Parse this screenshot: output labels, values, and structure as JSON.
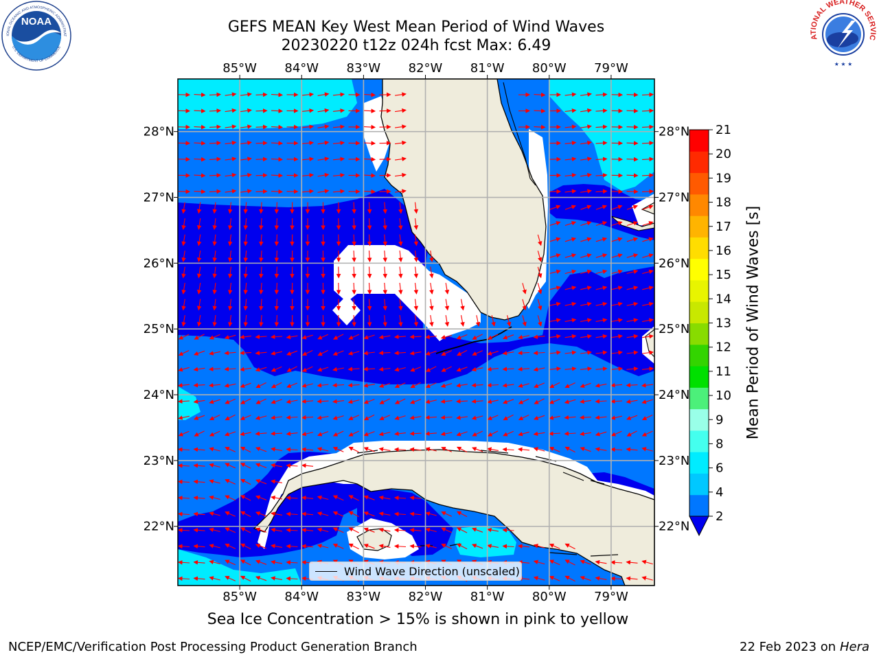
{
  "title_line1": "GEFS MEAN Key West Mean Period of Wind Waves",
  "title_line2": "20230220 t12z 024h fcst   Max: 6.49",
  "note": "Sea Ice Concentration > 15% is shown in pink to yellow",
  "footer_left": "NCEP/EMC/Verification Post Processing Product Generation Branch",
  "footer_date": "22 Feb 2023 on",
  "footer_machine": "Hera",
  "legend_label": "Wind Wave Direction (unscaled)",
  "colorbar": {
    "label": "Mean Period of Wind Waves [s]",
    "ticks": [
      "2",
      "4",
      "6",
      "8",
      "9",
      "10",
      "11",
      "12",
      "13",
      "14",
      "15",
      "16",
      "17",
      "18",
      "19",
      "20",
      "21"
    ],
    "colors": [
      "#0077ff",
      "#00c8ff",
      "#00ecff",
      "#44ffee",
      "#99ffe8",
      "#4cf07a",
      "#00e000",
      "#33d400",
      "#88dc00",
      "#c8e800",
      "#e8f400",
      "#ffff00",
      "#ffdd00",
      "#ffb400",
      "#ff8800",
      "#ff5a00",
      "#ff2a00",
      "#ff0000"
    ],
    "extend": "min"
  },
  "axes": {
    "lon_labels": [
      "85°W",
      "84°W",
      "83°W",
      "82°W",
      "81°W",
      "80°W",
      "79°W"
    ],
    "lat_labels": [
      "28°N",
      "27°N",
      "26°N",
      "25°N",
      "24°N",
      "23°N",
      "22°N"
    ],
    "lon_range": [
      -86.0,
      -78.3
    ],
    "lat_range": [
      21.1,
      28.8
    ]
  },
  "colors": {
    "land": "#efecdc",
    "arrow": "#ff0000",
    "grid": "#b0b0b0",
    "period_2_4": "#0077ff",
    "period_4_6": "#00c8ff",
    "period_6_8": "#00ecff",
    "below_min": "#0000ee",
    "no_data": "#ffffff"
  },
  "logos": {
    "left": "NOAA",
    "left_ring": "NATIONAL OCEANIC AND ATMOSPHERIC ADMINISTRATION",
    "left_ring_bottom": "U.S. DEPARTMENT OF COMMERCE",
    "right_ring": "NATIONAL WEATHER SERVICE"
  }
}
